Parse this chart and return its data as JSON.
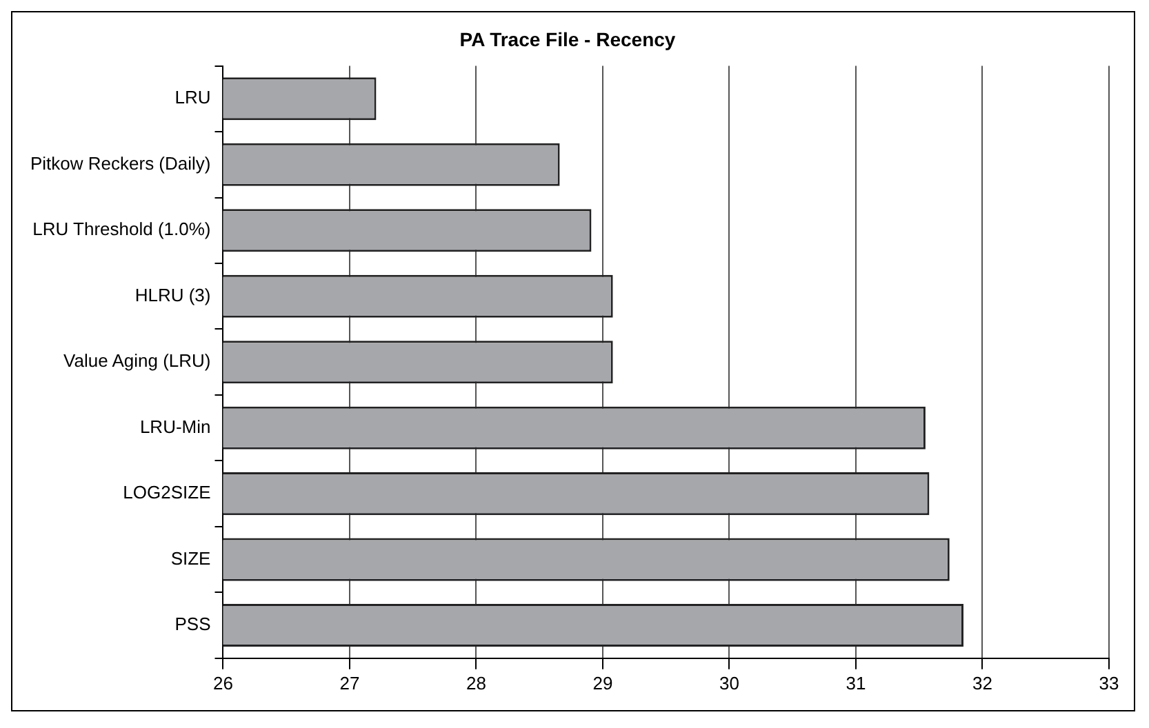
{
  "chart_data": {
    "type": "bar",
    "orientation": "horizontal",
    "title": "PA Trace File - Recency",
    "categories": [
      "LRU",
      "Pitkow Reckers (Daily)",
      "LRU Threshold (1.0%)",
      "HLRU (3)",
      "Value Aging (LRU)",
      "LRU-Min",
      "LOG2SIZE",
      "SIZE",
      "PSS"
    ],
    "values": [
      27.21,
      28.66,
      28.91,
      29.08,
      29.08,
      31.55,
      31.58,
      31.74,
      31.85
    ],
    "color": "#a6a7aa",
    "xlim": [
      26,
      33
    ],
    "xticks": [
      26,
      27,
      28,
      29,
      30,
      31,
      32,
      33
    ],
    "grid": "x"
  }
}
